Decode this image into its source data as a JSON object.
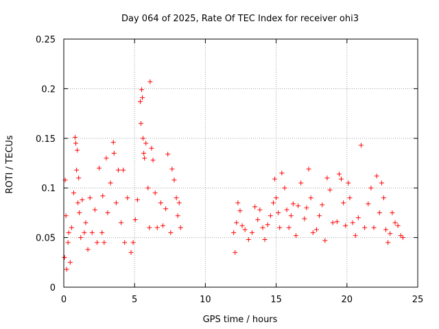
{
  "chart_data": {
    "type": "scatter",
    "title": "Day 064 of 2025, Rate Of TEC Index for receiver ohi3",
    "xlabel": "GPS time / hours",
    "ylabel": "ROTI / TECUs",
    "xlim": [
      0,
      25
    ],
    "ylim": [
      0,
      0.25
    ],
    "xticks": [
      "0",
      "5",
      "10",
      "15",
      "20",
      "25"
    ],
    "yticks": [
      "0",
      "0.05",
      "0.1",
      "0.15",
      "0.2",
      "0.25"
    ],
    "grid": true,
    "marker": "+",
    "color": "#ff0000",
    "data_gap_hours": [
      8.3,
      11.9
    ],
    "series": [
      {
        "x": [
          0.05,
          0.1,
          0.15,
          0.2,
          0.3,
          0.35,
          0.45,
          0.55,
          0.7,
          0.8,
          0.85,
          0.9,
          0.95,
          1.0,
          1.05,
          1.1,
          1.2,
          1.3,
          1.45,
          1.55,
          1.7,
          1.85,
          2.0,
          2.2,
          2.35,
          2.5,
          2.7,
          2.75,
          2.85,
          3.0,
          3.1,
          3.3,
          3.5,
          3.55,
          3.7,
          3.85,
          4.05,
          4.2,
          4.3,
          4.5,
          4.75,
          4.9,
          5.05,
          5.2,
          5.4,
          5.45,
          5.5,
          5.55,
          5.6,
          5.65,
          5.7,
          5.8,
          5.95,
          6.05,
          6.1,
          6.2,
          6.3,
          6.45,
          6.6,
          6.85,
          7.0,
          7.2,
          7.35,
          7.55,
          7.65,
          7.8,
          7.95,
          8.05,
          8.15,
          8.25,
          12.0,
          12.1,
          12.2,
          12.3,
          12.45,
          12.6,
          12.8,
          13.05,
          13.3,
          13.5,
          13.7,
          13.85,
          14.05,
          14.2,
          14.4,
          14.6,
          14.8,
          14.9,
          15.0,
          15.15,
          15.25,
          15.4,
          15.6,
          15.75,
          15.9,
          16.05,
          16.2,
          16.4,
          16.55,
          16.75,
          17.0,
          17.15,
          17.3,
          17.45,
          17.6,
          17.85,
          18.05,
          18.25,
          18.45,
          18.6,
          18.8,
          19.0,
          19.3,
          19.45,
          19.6,
          19.75,
          19.9,
          20.1,
          20.2,
          20.4,
          20.6,
          20.8,
          21.0,
          21.25,
          21.5,
          21.7,
          21.9,
          22.1,
          22.3,
          22.45,
          22.6,
          22.75,
          22.9,
          23.05,
          23.2,
          23.4,
          23.6,
          23.8,
          23.95
        ],
        "y": [
          0.03,
          0.108,
          0.072,
          0.018,
          0.045,
          0.055,
          0.025,
          0.06,
          0.095,
          0.151,
          0.145,
          0.118,
          0.138,
          0.085,
          0.11,
          0.075,
          0.05,
          0.088,
          0.055,
          0.065,
          0.038,
          0.09,
          0.055,
          0.078,
          0.045,
          0.12,
          0.055,
          0.092,
          0.045,
          0.13,
          0.075,
          0.105,
          0.146,
          0.135,
          0.085,
          0.118,
          0.065,
          0.118,
          0.045,
          0.09,
          0.035,
          0.045,
          0.068,
          0.088,
          0.187,
          0.165,
          0.199,
          0.191,
          0.15,
          0.135,
          0.13,
          0.145,
          0.1,
          0.06,
          0.207,
          0.14,
          0.128,
          0.095,
          0.06,
          0.085,
          0.062,
          0.079,
          0.134,
          0.055,
          0.119,
          0.108,
          0.09,
          0.072,
          0.085,
          0.06,
          0.055,
          0.035,
          0.065,
          0.085,
          0.077,
          0.062,
          0.058,
          0.048,
          0.055,
          0.081,
          0.068,
          0.078,
          0.06,
          0.048,
          0.063,
          0.072,
          0.085,
          0.109,
          0.09,
          0.075,
          0.06,
          0.115,
          0.1,
          0.078,
          0.06,
          0.072,
          0.084,
          0.052,
          0.082,
          0.105,
          0.069,
          0.08,
          0.119,
          0.09,
          0.055,
          0.058,
          0.072,
          0.083,
          0.047,
          0.11,
          0.098,
          0.065,
          0.066,
          0.114,
          0.109,
          0.085,
          0.062,
          0.105,
          0.09,
          0.065,
          0.052,
          0.07,
          0.143,
          0.06,
          0.084,
          0.1,
          0.06,
          0.112,
          0.075,
          0.105,
          0.09,
          0.058,
          0.045,
          0.054,
          0.075,
          0.065,
          0.062,
          0.052,
          0.05
        ]
      }
    ]
  }
}
